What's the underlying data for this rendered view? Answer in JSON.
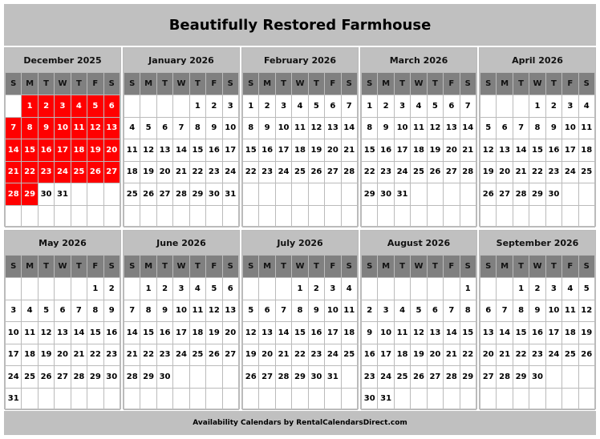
{
  "title": "Beautifully Restored Farmhouse",
  "footer": "Availability Calendars by RentalCalendarsDirect.com",
  "weekdays": [
    "S",
    "M",
    "T",
    "W",
    "T",
    "F",
    "S"
  ],
  "colors": {
    "booked": "#ff0000",
    "header": "#c0c0c0",
    "weekday_header": "#808080"
  },
  "months": [
    {
      "name": "December 2025",
      "booked": [
        1,
        2,
        3,
        4,
        5,
        6,
        7,
        8,
        9,
        10,
        11,
        12,
        13,
        14,
        15,
        16,
        17,
        18,
        19,
        20,
        21,
        22,
        23,
        24,
        25,
        26,
        27,
        28,
        29
      ],
      "weeks": [
        [
          "",
          "1",
          "2",
          "3",
          "4",
          "5",
          "6"
        ],
        [
          "7",
          "8",
          "9",
          "10",
          "11",
          "12",
          "13"
        ],
        [
          "14",
          "15",
          "16",
          "17",
          "18",
          "19",
          "20"
        ],
        [
          "21",
          "22",
          "23",
          "24",
          "25",
          "26",
          "27"
        ],
        [
          "28",
          "29",
          "30",
          "31",
          "",
          "",
          ""
        ],
        [
          "",
          "",
          "",
          "",
          "",
          "",
          ""
        ]
      ]
    },
    {
      "name": "January 2026",
      "booked": [],
      "weeks": [
        [
          "",
          "",
          "",
          "",
          "1",
          "2",
          "3"
        ],
        [
          "4",
          "5",
          "6",
          "7",
          "8",
          "9",
          "10"
        ],
        [
          "11",
          "12",
          "13",
          "14",
          "15",
          "16",
          "17"
        ],
        [
          "18",
          "19",
          "20",
          "21",
          "22",
          "23",
          "24"
        ],
        [
          "25",
          "26",
          "27",
          "28",
          "29",
          "30",
          "31"
        ],
        [
          "",
          "",
          "",
          "",
          "",
          "",
          ""
        ]
      ]
    },
    {
      "name": "February 2026",
      "booked": [],
      "weeks": [
        [
          "1",
          "2",
          "3",
          "4",
          "5",
          "6",
          "7"
        ],
        [
          "8",
          "9",
          "10",
          "11",
          "12",
          "13",
          "14"
        ],
        [
          "15",
          "16",
          "17",
          "18",
          "19",
          "20",
          "21"
        ],
        [
          "22",
          "23",
          "24",
          "25",
          "26",
          "27",
          "28"
        ],
        [
          "",
          "",
          "",
          "",
          "",
          "",
          ""
        ],
        [
          "",
          "",
          "",
          "",
          "",
          "",
          ""
        ]
      ]
    },
    {
      "name": "March 2026",
      "booked": [],
      "weeks": [
        [
          "1",
          "2",
          "3",
          "4",
          "5",
          "6",
          "7"
        ],
        [
          "8",
          "9",
          "10",
          "11",
          "12",
          "13",
          "14"
        ],
        [
          "15",
          "16",
          "17",
          "18",
          "19",
          "20",
          "21"
        ],
        [
          "22",
          "23",
          "24",
          "25",
          "26",
          "27",
          "28"
        ],
        [
          "29",
          "30",
          "31",
          "",
          "",
          "",
          ""
        ],
        [
          "",
          "",
          "",
          "",
          "",
          "",
          ""
        ]
      ]
    },
    {
      "name": "April 2026",
      "booked": [],
      "weeks": [
        [
          "",
          "",
          "",
          "1",
          "2",
          "3",
          "4"
        ],
        [
          "5",
          "6",
          "7",
          "8",
          "9",
          "10",
          "11"
        ],
        [
          "12",
          "13",
          "14",
          "15",
          "16",
          "17",
          "18"
        ],
        [
          "19",
          "20",
          "21",
          "22",
          "23",
          "24",
          "25"
        ],
        [
          "26",
          "27",
          "28",
          "29",
          "30",
          "",
          ""
        ],
        [
          "",
          "",
          "",
          "",
          "",
          "",
          ""
        ]
      ]
    },
    {
      "name": "May 2026",
      "booked": [],
      "weeks": [
        [
          "",
          "",
          "",
          "",
          "",
          "1",
          "2"
        ],
        [
          "3",
          "4",
          "5",
          "6",
          "7",
          "8",
          "9"
        ],
        [
          "10",
          "11",
          "12",
          "13",
          "14",
          "15",
          "16"
        ],
        [
          "17",
          "18",
          "19",
          "20",
          "21",
          "22",
          "23"
        ],
        [
          "24",
          "25",
          "26",
          "27",
          "28",
          "29",
          "30"
        ],
        [
          "31",
          "",
          "",
          "",
          "",
          "",
          ""
        ]
      ]
    },
    {
      "name": "June 2026",
      "booked": [],
      "weeks": [
        [
          "",
          "1",
          "2",
          "3",
          "4",
          "5",
          "6"
        ],
        [
          "7",
          "8",
          "9",
          "10",
          "11",
          "12",
          "13"
        ],
        [
          "14",
          "15",
          "16",
          "17",
          "18",
          "19",
          "20"
        ],
        [
          "21",
          "22",
          "23",
          "24",
          "25",
          "26",
          "27"
        ],
        [
          "28",
          "29",
          "30",
          "",
          "",
          "",
          ""
        ],
        [
          "",
          "",
          "",
          "",
          "",
          "",
          ""
        ]
      ]
    },
    {
      "name": "July 2026",
      "booked": [],
      "weeks": [
        [
          "",
          "",
          "",
          "1",
          "2",
          "3",
          "4"
        ],
        [
          "5",
          "6",
          "7",
          "8",
          "9",
          "10",
          "11"
        ],
        [
          "12",
          "13",
          "14",
          "15",
          "16",
          "17",
          "18"
        ],
        [
          "19",
          "20",
          "21",
          "22",
          "23",
          "24",
          "25"
        ],
        [
          "26",
          "27",
          "28",
          "29",
          "30",
          "31",
          ""
        ],
        [
          "",
          "",
          "",
          "",
          "",
          "",
          ""
        ]
      ]
    },
    {
      "name": "August 2026",
      "booked": [],
      "weeks": [
        [
          "",
          "",
          "",
          "",
          "",
          "",
          "1"
        ],
        [
          "2",
          "3",
          "4",
          "5",
          "6",
          "7",
          "8"
        ],
        [
          "9",
          "10",
          "11",
          "12",
          "13",
          "14",
          "15"
        ],
        [
          "16",
          "17",
          "18",
          "19",
          "20",
          "21",
          "22"
        ],
        [
          "23",
          "24",
          "25",
          "26",
          "27",
          "28",
          "29"
        ],
        [
          "30",
          "31",
          "",
          "",
          "",
          "",
          ""
        ]
      ]
    },
    {
      "name": "September 2026",
      "booked": [],
      "weeks": [
        [
          "",
          "",
          "1",
          "2",
          "3",
          "4",
          "5"
        ],
        [
          "6",
          "7",
          "8",
          "9",
          "10",
          "11",
          "12"
        ],
        [
          "13",
          "14",
          "15",
          "16",
          "17",
          "18",
          "19"
        ],
        [
          "20",
          "21",
          "22",
          "23",
          "24",
          "25",
          "26"
        ],
        [
          "27",
          "28",
          "29",
          "30",
          "",
          "",
          ""
        ],
        [
          "",
          "",
          "",
          "",
          "",
          "",
          ""
        ]
      ]
    }
  ]
}
